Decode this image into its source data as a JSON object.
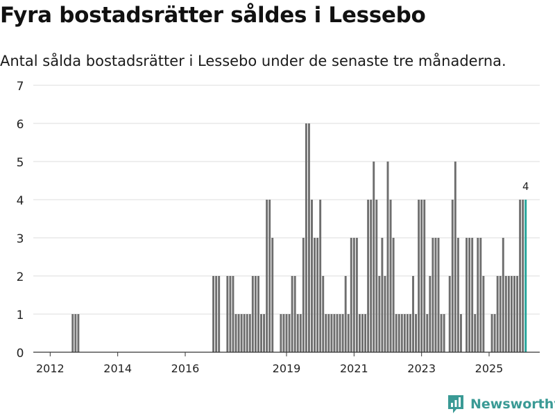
{
  "header": {
    "title": "Fyra bostadsrätter såldes i Lessebo",
    "subtitle": "Antal sålda bostadsrätter i Lessebo under de senaste tre månaderna."
  },
  "brand": {
    "name": "Newsworthy"
  },
  "colors": {
    "bar": "#6e6e6e",
    "highlight": "#22a39a",
    "grid": "#dddddd",
    "axis": "#333333",
    "brand": "#3a9a95"
  },
  "chart_data": {
    "type": "bar",
    "title": "Fyra bostadsrätter såldes i Lessebo",
    "subtitle": "Antal sålda bostadsrätter i Lessebo under de senaste tre månaderna.",
    "xlabel": "",
    "ylabel": "",
    "ylim": [
      0,
      7
    ],
    "yticks": [
      0,
      1,
      2,
      3,
      4,
      5,
      6,
      7
    ],
    "xlim": [
      2011.5,
      2026.5
    ],
    "xticks": [
      2012,
      2014,
      2016,
      2019,
      2021,
      2023,
      2025
    ],
    "grid": true,
    "start": 2011.5,
    "step": 0.0833333,
    "values": [
      0,
      0,
      0,
      0,
      0,
      0,
      0,
      0,
      0,
      0,
      0,
      0,
      0,
      0,
      1,
      1,
      1,
      0,
      0,
      0,
      0,
      0,
      0,
      0,
      0,
      0,
      0,
      0,
      0,
      0,
      0,
      0,
      0,
      0,
      0,
      0,
      0,
      0,
      0,
      0,
      0,
      0,
      0,
      0,
      0,
      0,
      0,
      0,
      0,
      0,
      0,
      0,
      0,
      0,
      0,
      0,
      0,
      0,
      0,
      0,
      0,
      0,
      0,
      0,
      2,
      2,
      2,
      0,
      0,
      2,
      2,
      2,
      1,
      1,
      1,
      1,
      1,
      1,
      2,
      2,
      2,
      1,
      1,
      4,
      4,
      3,
      0,
      0,
      1,
      1,
      1,
      1,
      2,
      2,
      1,
      1,
      3,
      6,
      6,
      4,
      3,
      3,
      4,
      2,
      1,
      1,
      1,
      1,
      1,
      1,
      1,
      2,
      1,
      3,
      3,
      3,
      1,
      1,
      1,
      4,
      4,
      5,
      4,
      2,
      3,
      2,
      5,
      4,
      3,
      1,
      1,
      1,
      1,
      1,
      1,
      2,
      1,
      4,
      4,
      4,
      1,
      2,
      3,
      3,
      3,
      1,
      1,
      0,
      2,
      4,
      5,
      3,
      1,
      0,
      3,
      3,
      3,
      1,
      3,
      3,
      2,
      0,
      0,
      1,
      1,
      2,
      2,
      3,
      2,
      2,
      2,
      2,
      2,
      4,
      4,
      4
    ],
    "highlight_last": true,
    "last_label": "4"
  }
}
